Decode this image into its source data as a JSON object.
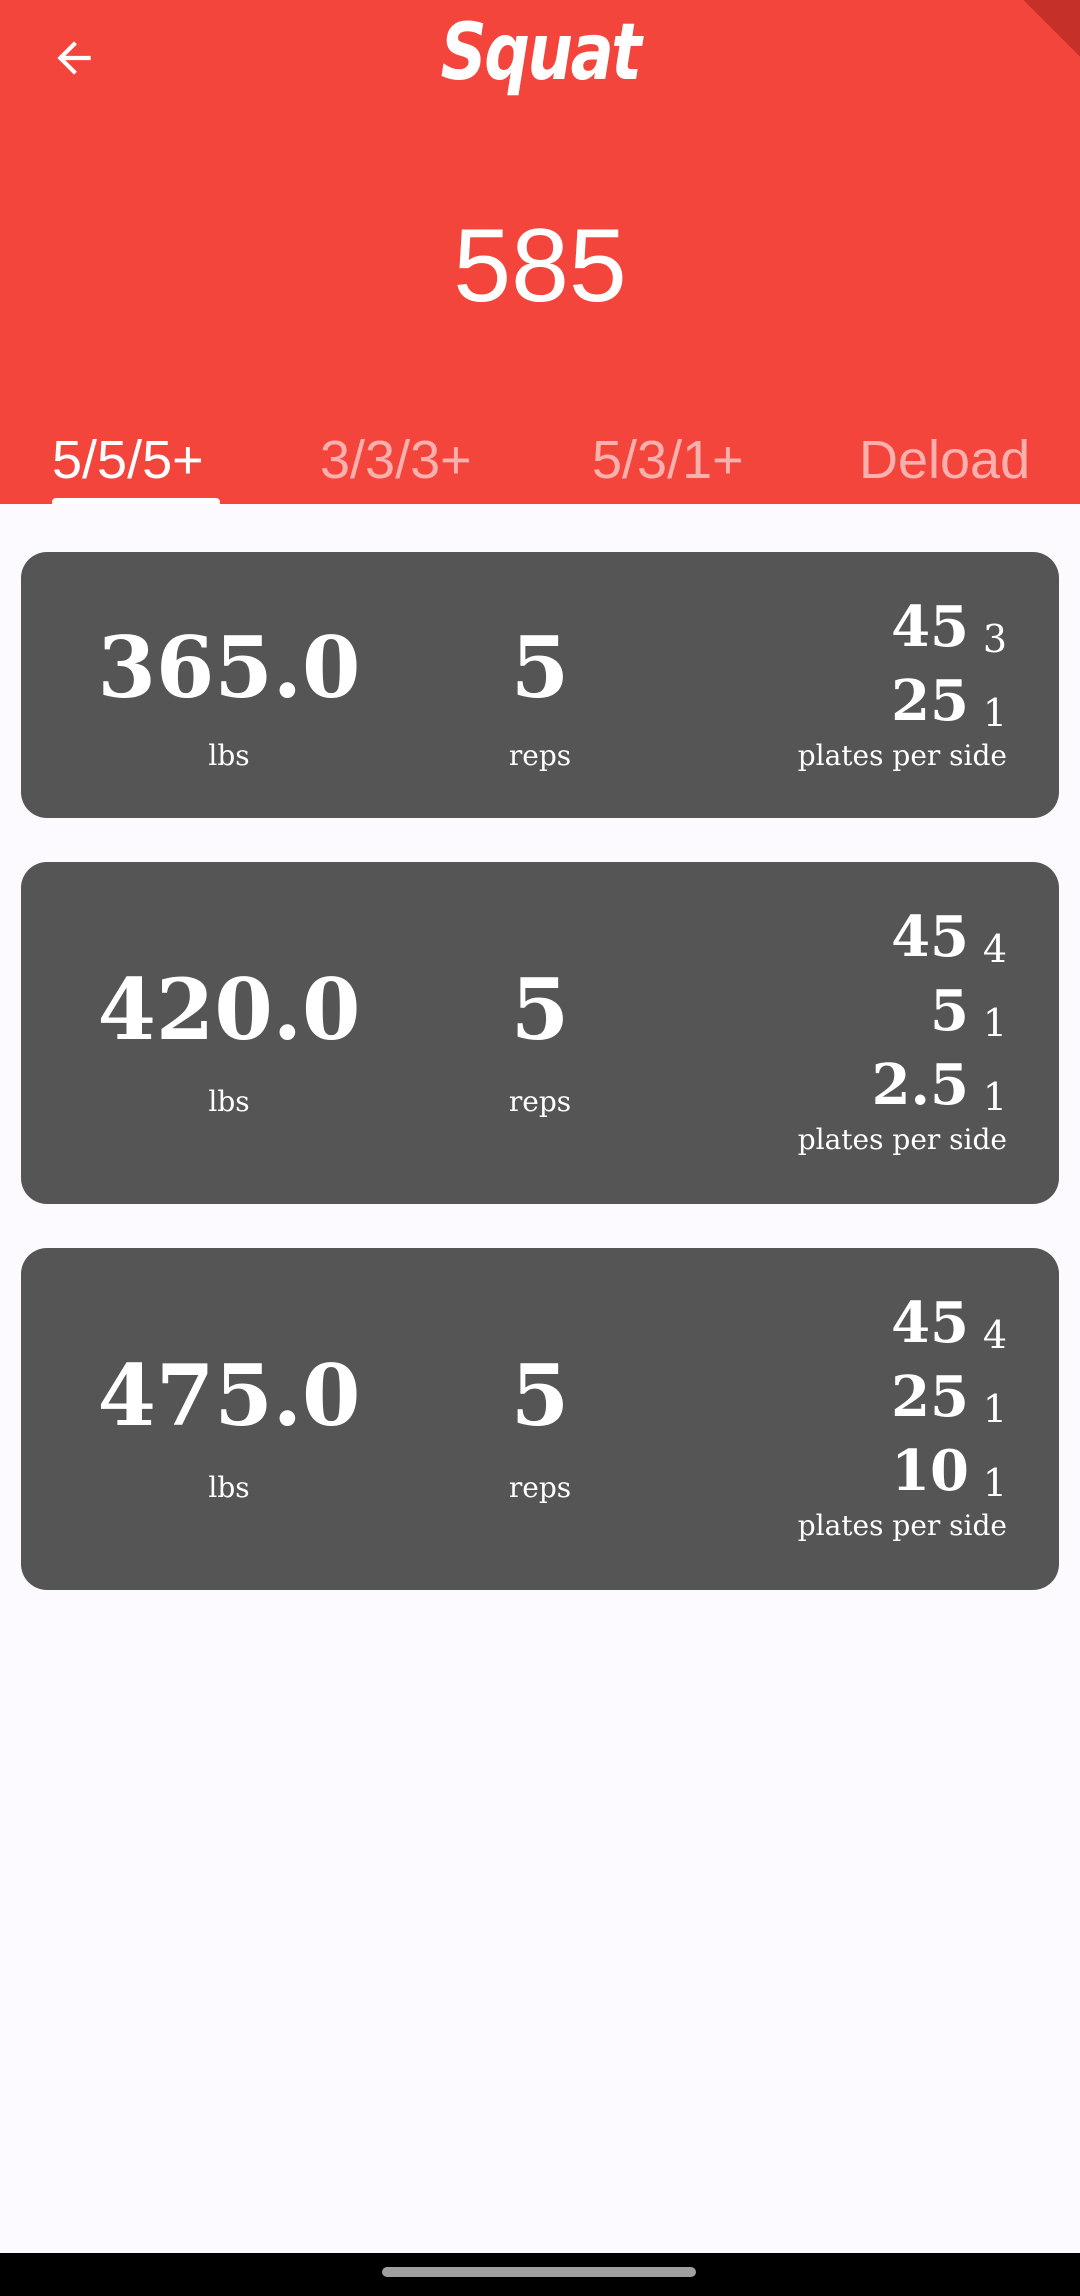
{
  "header": {
    "title": "Squat",
    "max_value": "585",
    "background_color": "#f4453c"
  },
  "back_icon": "arrow-left-icon",
  "tabs": [
    {
      "label": "5/5/5+",
      "active": true
    },
    {
      "label": "3/3/3+",
      "active": false
    },
    {
      "label": "5/3/1+",
      "active": false
    },
    {
      "label": "Deload",
      "active": false
    }
  ],
  "sets": [
    {
      "weight": "365.0",
      "weight_unit": "lbs",
      "reps": "5",
      "reps_unit": "reps",
      "plates": [
        {
          "weight": "45",
          "count": "3"
        },
        {
          "weight": "25",
          "count": "1"
        }
      ],
      "plates_label": "plates per side"
    },
    {
      "weight": "420.0",
      "weight_unit": "lbs",
      "reps": "5",
      "reps_unit": "reps",
      "plates": [
        {
          "weight": "45",
          "count": "4"
        },
        {
          "weight": "5",
          "count": "1"
        },
        {
          "weight": "2.5",
          "count": "1"
        }
      ],
      "plates_label": "plates per side"
    },
    {
      "weight": "475.0",
      "weight_unit": "lbs",
      "reps": "5",
      "reps_unit": "reps",
      "plates": [
        {
          "weight": "45",
          "count": "4"
        },
        {
          "weight": "25",
          "count": "1"
        },
        {
          "weight": "10",
          "count": "1"
        }
      ],
      "plates_label": "plates per side"
    }
  ],
  "colors": {
    "card_background": "#555555",
    "page_background": "#fcf9ff"
  }
}
